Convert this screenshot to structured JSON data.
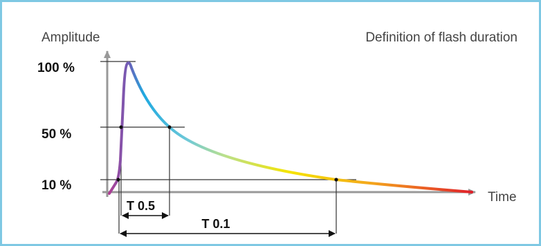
{
  "title": "Definition of flash duration",
  "y_axis_label": "Amplitude",
  "x_axis_label": "Time",
  "levels": [
    {
      "label": "100 %",
      "value": 100
    },
    {
      "label": "50 %",
      "value": 50
    },
    {
      "label": "10 %",
      "value": 10
    }
  ],
  "durations": [
    {
      "label": "T 0.5",
      "level": 50
    },
    {
      "label": "T 0.1",
      "level": 10
    }
  ],
  "colors": {
    "frame": "#7ec8e3",
    "axis": "#999999",
    "guide": "#333333",
    "curve_start": "#b53b8f",
    "curve_peak": "#1fa9e0",
    "curve_mid": "#f5e400",
    "curve_end": "#e0202a"
  }
}
